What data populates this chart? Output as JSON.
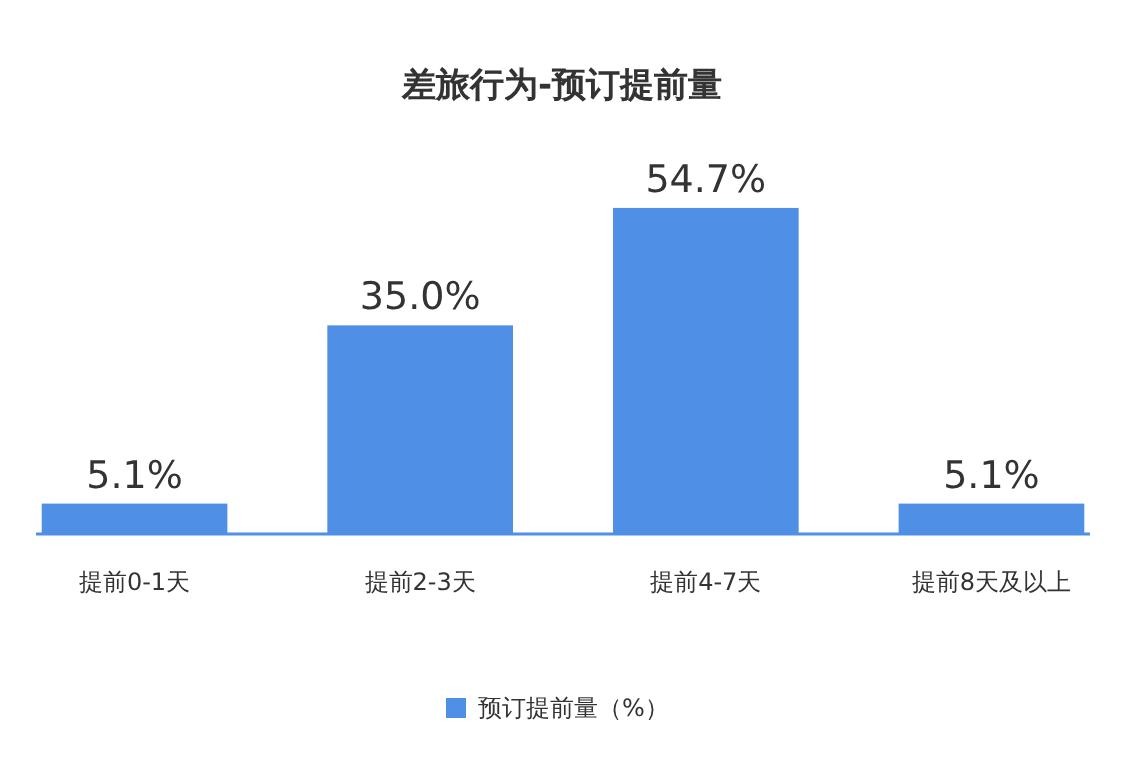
{
  "chart_data": {
    "type": "bar",
    "title": "差旅行为-预订提前量",
    "categories": [
      "提前0-1天",
      "提前2-3天",
      "提前4-7天",
      "提前8天及以上"
    ],
    "series": [
      {
        "name": "预订提前量（%）",
        "color": "#4f8fe6",
        "values": [
          5.1,
          35.0,
          54.7,
          5.1
        ],
        "value_labels": [
          "5.1%",
          "35.0%",
          "54.7%",
          "5.1%"
        ]
      }
    ],
    "legend": "bottom",
    "grid": false
  }
}
